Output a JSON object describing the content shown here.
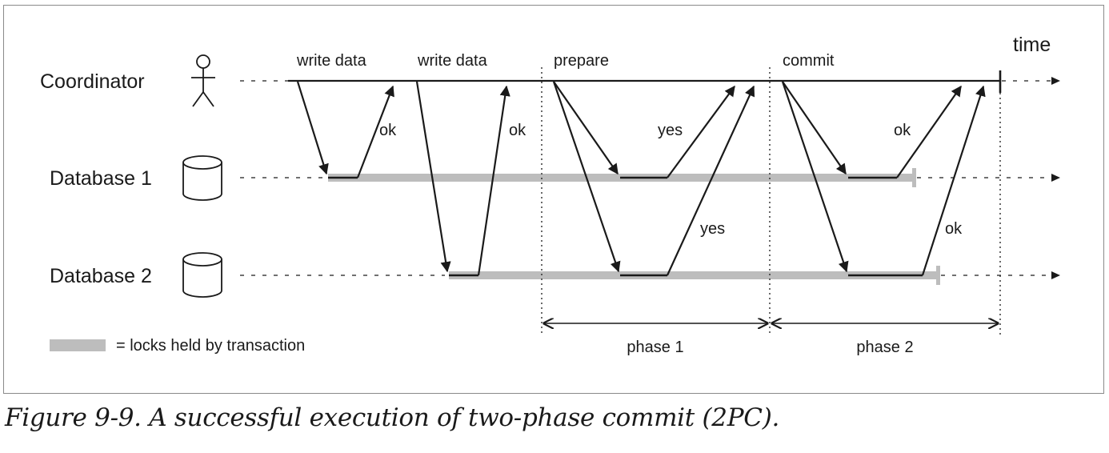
{
  "participants": {
    "coordinator": "Coordinator",
    "database1": "Database 1",
    "database2": "Database 2"
  },
  "time_label": "time",
  "messages": {
    "write_data_1": "write data",
    "write_data_2": "write data",
    "prepare": "prepare",
    "commit": "commit",
    "ok_db1_write": "ok",
    "ok_db2_write": "ok",
    "yes_db1": "yes",
    "yes_db2": "yes",
    "ok_db1_commit": "ok",
    "ok_db2_commit": "ok"
  },
  "phases": {
    "phase1": "phase 1",
    "phase2": "phase 2"
  },
  "legend": {
    "locks": "= locks held by transaction",
    "locks_color": "#bdbdbd"
  },
  "caption": "Figure 9-9. A successful execution of two-phase commit (2PC)."
}
